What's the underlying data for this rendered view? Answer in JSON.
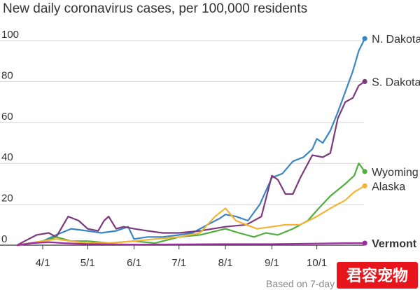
{
  "chart_data": {
    "type": "line",
    "title": "New daily coronavirus cases, per 100,000 residents",
    "y_ticks": [
      0,
      20,
      40,
      60,
      80,
      100
    ],
    "ylim": [
      0,
      104
    ],
    "x_ticks": [
      "4/1",
      "5/1",
      "6/1",
      "7/1",
      "8/1",
      "9/1",
      "10/1"
    ],
    "footnote": "Based on 7-day",
    "watermark": "君容宠物",
    "series": [
      {
        "name": "N. Dakota",
        "color": "#3a86c2",
        "bold": false,
        "label_value": 101,
        "values": [
          [
            "3/15",
            0
          ],
          [
            "4/1",
            2
          ],
          [
            "4/10",
            5
          ],
          [
            "4/20",
            8
          ],
          [
            "5/1",
            7
          ],
          [
            "5/10",
            6
          ],
          [
            "5/20",
            7
          ],
          [
            "5/28",
            9
          ],
          [
            "6/1",
            3
          ],
          [
            "6/10",
            4
          ],
          [
            "6/20",
            4
          ],
          [
            "7/1",
            5
          ],
          [
            "7/10",
            6
          ],
          [
            "7/20",
            10
          ],
          [
            "7/28",
            13
          ],
          [
            "8/1",
            15
          ],
          [
            "8/8",
            14
          ],
          [
            "8/16",
            12
          ],
          [
            "8/24",
            20
          ],
          [
            "9/1",
            33
          ],
          [
            "9/8",
            35
          ],
          [
            "9/15",
            41
          ],
          [
            "9/22",
            43
          ],
          [
            "9/28",
            47
          ],
          [
            "10/1",
            52
          ],
          [
            "10/5",
            50
          ],
          [
            "10/10",
            56
          ],
          [
            "10/15",
            65
          ],
          [
            "10/20",
            75
          ],
          [
            "10/25",
            85
          ],
          [
            "10/29",
            95
          ],
          [
            "11/2",
            101
          ]
        ]
      },
      {
        "name": "S. Dakota",
        "color": "#7b3a7e",
        "bold": false,
        "label_value": 80,
        "values": [
          [
            "3/15",
            0
          ],
          [
            "3/20",
            2
          ],
          [
            "3/28",
            5
          ],
          [
            "4/5",
            6
          ],
          [
            "4/10",
            4
          ],
          [
            "4/18",
            14
          ],
          [
            "4/25",
            12
          ],
          [
            "5/1",
            8
          ],
          [
            "5/8",
            7
          ],
          [
            "5/12",
            12
          ],
          [
            "5/15",
            14
          ],
          [
            "5/20",
            8
          ],
          [
            "5/25",
            9
          ],
          [
            "6/1",
            8
          ],
          [
            "6/10",
            7
          ],
          [
            "6/20",
            6
          ],
          [
            "7/1",
            6
          ],
          [
            "7/15",
            7
          ],
          [
            "8/1",
            9
          ],
          [
            "8/15",
            10
          ],
          [
            "8/25",
            14
          ],
          [
            "9/1",
            34
          ],
          [
            "9/5",
            32
          ],
          [
            "9/10",
            25
          ],
          [
            "9/15",
            25
          ],
          [
            "9/20",
            33
          ],
          [
            "9/28",
            44
          ],
          [
            "10/5",
            43
          ],
          [
            "10/10",
            45
          ],
          [
            "10/15",
            62
          ],
          [
            "10/20",
            70
          ],
          [
            "10/25",
            72
          ],
          [
            "10/29",
            78
          ],
          [
            "11/2",
            80
          ]
        ]
      },
      {
        "name": "Wyoming",
        "color": "#51ae3e",
        "bold": false,
        "label_value": 36,
        "values": [
          [
            "3/15",
            0
          ],
          [
            "4/1",
            2
          ],
          [
            "4/10",
            4
          ],
          [
            "4/20",
            2
          ],
          [
            "5/1",
            2
          ],
          [
            "5/15",
            1
          ],
          [
            "6/1",
            2
          ],
          [
            "6/15",
            1
          ],
          [
            "7/1",
            4
          ],
          [
            "7/15",
            5
          ],
          [
            "8/1",
            8
          ],
          [
            "8/10",
            6
          ],
          [
            "8/20",
            4
          ],
          [
            "8/28",
            6
          ],
          [
            "9/5",
            5
          ],
          [
            "9/15",
            8
          ],
          [
            "9/25",
            12
          ],
          [
            "10/1",
            17
          ],
          [
            "10/10",
            24
          ],
          [
            "10/20",
            30
          ],
          [
            "10/26",
            34
          ],
          [
            "10/29",
            40
          ],
          [
            "11/2",
            36
          ]
        ]
      },
      {
        "name": "Alaska",
        "color": "#f5b335",
        "bold": false,
        "label_value": 29,
        "values": [
          [
            "3/15",
            0
          ],
          [
            "4/1",
            2
          ],
          [
            "4/10",
            3
          ],
          [
            "4/20",
            2
          ],
          [
            "5/1",
            1
          ],
          [
            "5/15",
            1
          ],
          [
            "6/1",
            2
          ],
          [
            "6/15",
            3
          ],
          [
            "7/1",
            4
          ],
          [
            "7/15",
            6
          ],
          [
            "7/25",
            14
          ],
          [
            "8/1",
            18
          ],
          [
            "8/8",
            12
          ],
          [
            "8/15",
            10
          ],
          [
            "8/22",
            8
          ],
          [
            "9/1",
            9
          ],
          [
            "9/10",
            10
          ],
          [
            "9/20",
            10
          ],
          [
            "10/1",
            14
          ],
          [
            "10/10",
            18
          ],
          [
            "10/20",
            22
          ],
          [
            "10/26",
            26
          ],
          [
            "11/2",
            29
          ]
        ]
      },
      {
        "name": "Vermont",
        "color": "#a02ba3",
        "bold": true,
        "label_value": 1,
        "values": [
          [
            "3/15",
            0
          ],
          [
            "3/25",
            1
          ],
          [
            "4/5",
            1.5
          ],
          [
            "4/15",
            1
          ],
          [
            "5/1",
            0.5
          ],
          [
            "6/1",
            0.3
          ],
          [
            "7/1",
            0.4
          ],
          [
            "8/1",
            0.5
          ],
          [
            "9/1",
            0.5
          ],
          [
            "10/1",
            0.8
          ],
          [
            "10/20",
            1
          ],
          [
            "11/2",
            1
          ]
        ]
      }
    ]
  }
}
